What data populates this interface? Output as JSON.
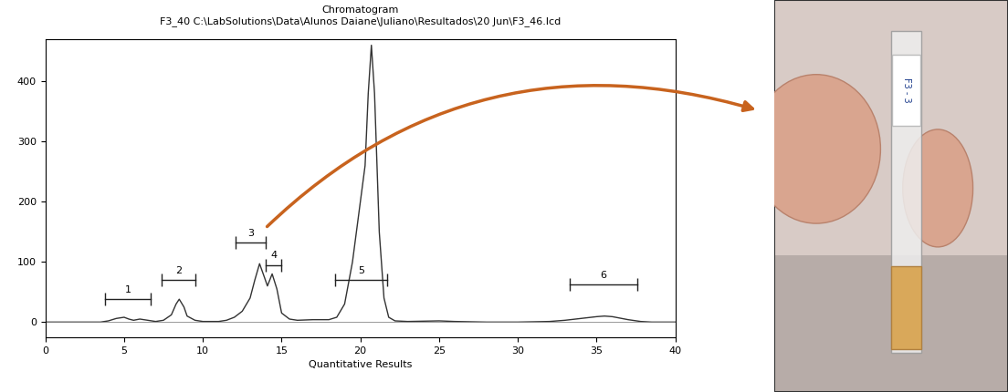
{
  "chart_data": {
    "type": "line",
    "title": "Chromatogram",
    "subtitle": "F3_40 C:\\LabSolutions\\Data\\Alunos Daiane\\Juliano\\Resultados\\20 Jun\\F3_46.lcd",
    "x_label": "Quantitative Results",
    "x": [
      0,
      3.5,
      4.0,
      4.5,
      5.0,
      5.3,
      5.6,
      6.0,
      6.5,
      7.0,
      7.5,
      8.0,
      8.3,
      8.5,
      8.8,
      9.0,
      9.5,
      10,
      11,
      11.5,
      12,
      12.5,
      13,
      13.3,
      13.6,
      13.9,
      14.1,
      14.4,
      14.7,
      15.0,
      15.5,
      16,
      17,
      18,
      18.5,
      19,
      19.5,
      20,
      20.3,
      20.5,
      20.7,
      20.9,
      21.2,
      21.5,
      21.8,
      22.2,
      23,
      25,
      26,
      28,
      30,
      32,
      33,
      34,
      35,
      35.5,
      36,
      37,
      37.8,
      38.5,
      40
    ],
    "values": [
      0,
      0,
      2,
      6,
      8,
      5,
      3,
      5,
      3,
      1,
      3,
      12,
      30,
      38,
      25,
      10,
      3,
      1,
      1,
      3,
      8,
      18,
      40,
      70,
      97,
      75,
      60,
      80,
      55,
      15,
      5,
      3,
      4,
      4,
      8,
      30,
      100,
      200,
      260,
      380,
      460,
      380,
      150,
      40,
      8,
      2,
      1,
      2,
      1,
      0,
      0,
      1,
      3,
      6,
      9,
      10,
      9,
      4,
      1,
      0,
      0
    ],
    "color": "#333333",
    "xlim": [
      0,
      40
    ],
    "xticks": [
      0,
      5,
      10,
      15,
      20,
      25,
      30,
      35,
      40
    ],
    "ylim": [
      -25,
      470
    ],
    "yticks": [
      0,
      100,
      200,
      300,
      400
    ],
    "regions": [
      {
        "label": "1",
        "start": 3.8,
        "end": 6.7,
        "y": 38
      },
      {
        "label": "2",
        "start": 7.4,
        "end": 9.5,
        "y": 70
      },
      {
        "label": "3",
        "start": 12.1,
        "end": 14.0,
        "y": 132
      },
      {
        "label": "4",
        "start": 14.0,
        "end": 15.0,
        "y": 95
      },
      {
        "label": "5",
        "start": 18.4,
        "end": 21.7,
        "y": 70
      },
      {
        "label": "6",
        "start": 33.3,
        "end": 37.6,
        "y": 62
      }
    ],
    "arrow_from_region": "3"
  },
  "photo": {
    "tube_label": "F3 - 3"
  }
}
